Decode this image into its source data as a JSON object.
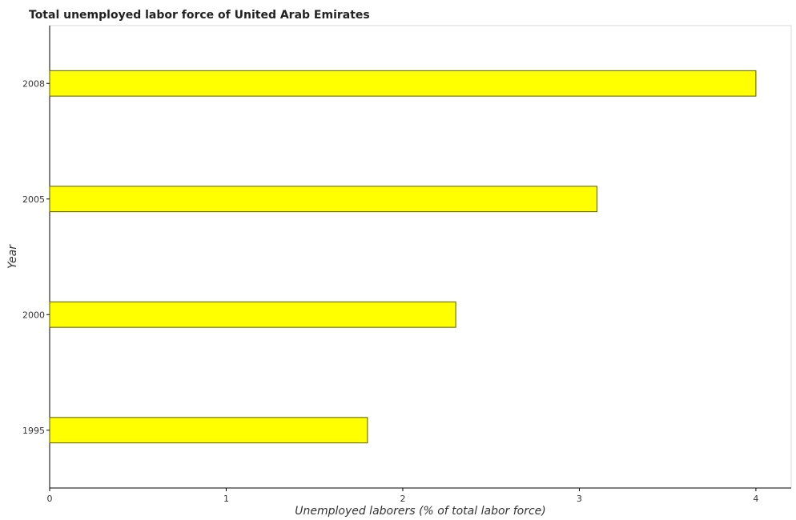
{
  "chart_data": {
    "type": "bar",
    "orientation": "horizontal",
    "title": "Total unemployed labor force of United Arab Emirates",
    "xlabel": "Unemployed laborers (% of total labor force)",
    "ylabel": "Year",
    "categories": [
      "1995",
      "2000",
      "2005",
      "2008"
    ],
    "values": [
      1.8,
      2.3,
      3.1,
      4.0
    ],
    "xlim": [
      0,
      4.2
    ],
    "xticks": [
      "0",
      "1",
      "2",
      "3",
      "4"
    ],
    "grid": false,
    "legend": "none",
    "bar_color": "#ffff00",
    "bar_edge_color": "#5a5a00"
  }
}
